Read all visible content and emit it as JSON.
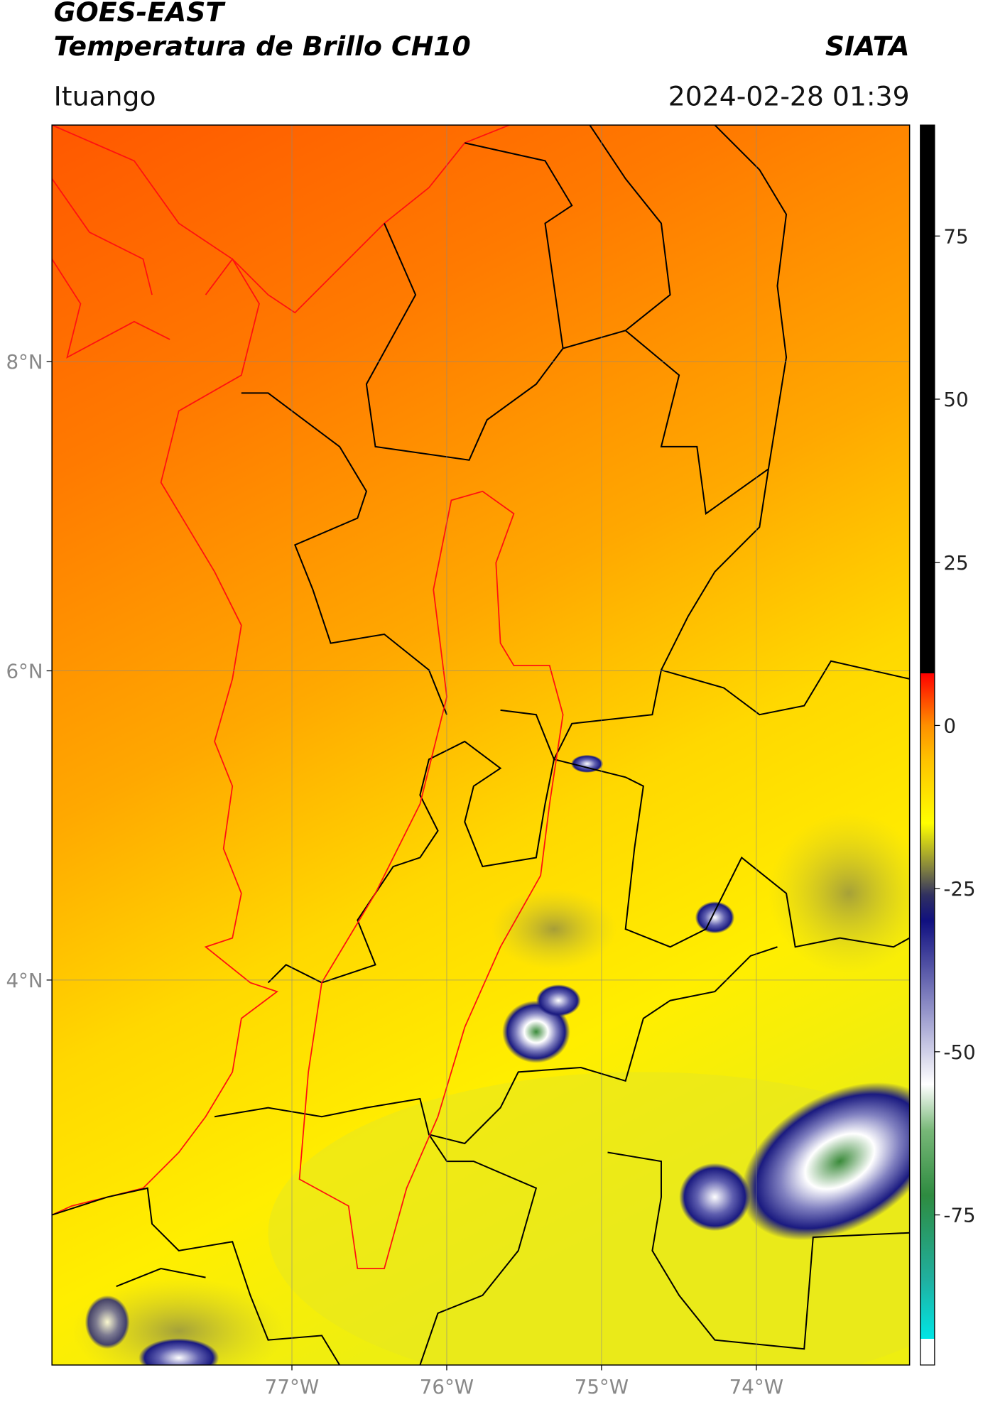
{
  "header": {
    "title": "GOES-EAST",
    "subtitle": "Temperatura de Brillo CH10",
    "brand": "SIATA",
    "location": "Ituango",
    "datetime": "2024-02-28 01:39"
  },
  "map": {
    "xlim": [
      -78.55,
      -73.01
    ],
    "ylim": [
      1.51,
      9.53
    ],
    "xticks": [
      {
        "value": -77,
        "label": "77°W"
      },
      {
        "value": -76,
        "label": "76°W"
      },
      {
        "value": -75,
        "label": "75°W"
      },
      {
        "value": -74,
        "label": "74°W"
      }
    ],
    "yticks": [
      {
        "value": 8,
        "label": "8°N"
      },
      {
        "value": 6,
        "label": "6°N"
      },
      {
        "value": 4,
        "label": "4°N"
      }
    ],
    "grid": true
  },
  "colorbar": {
    "lim": [
      -98,
      92
    ],
    "ticks": [
      75,
      50,
      25,
      0,
      -25,
      -50,
      -75
    ],
    "stops": [
      {
        "value": -98,
        "color": "#ffffff"
      },
      {
        "value": -94,
        "color": "#ffffff"
      },
      {
        "value": -94,
        "color": "#00e5e5"
      },
      {
        "value": -85,
        "color": "#20b0a0"
      },
      {
        "value": -72,
        "color": "#2e8b40"
      },
      {
        "value": -62,
        "color": "#78b878"
      },
      {
        "value": -55,
        "color": "#ffffff"
      },
      {
        "value": -45,
        "color": "#a0a0d0"
      },
      {
        "value": -30,
        "color": "#101080"
      },
      {
        "value": -26,
        "color": "#303060"
      },
      {
        "value": -22,
        "color": "#808040"
      },
      {
        "value": -15,
        "color": "#ffff00"
      },
      {
        "value": -5,
        "color": "#ffc000"
      },
      {
        "value": 0,
        "color": "#ff9000"
      },
      {
        "value": 8,
        "color": "#ff0000"
      },
      {
        "value": 8,
        "color": "#000000"
      },
      {
        "value": 92,
        "color": "#000000"
      }
    ]
  }
}
